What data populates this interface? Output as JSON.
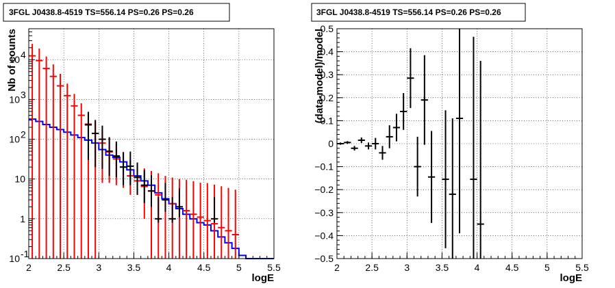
{
  "chart_data": [
    {
      "type": "scatter",
      "title": "3FGL J0438.8-4519 TS=556.14 PS=0.26 PS=0.26",
      "xlabel": "logE",
      "ylabel": "Nb of counts",
      "xlim": [
        2,
        5.5
      ],
      "ylim": [
        0.1,
        60000
      ],
      "log_y": true,
      "grid": true,
      "x_ticks": [
        "2",
        "2.5",
        "3",
        "3.5",
        "4",
        "4.5",
        "5",
        "5.5"
      ],
      "y_ticks": [
        {
          "value": 0.1,
          "base": "10",
          "exp": "-1"
        },
        {
          "value": 1,
          "base": "1",
          "exp": ""
        },
        {
          "value": 10,
          "base": "10",
          "exp": ""
        },
        {
          "value": 100,
          "base": "10",
          "exp": "2"
        },
        {
          "value": 1000,
          "base": "10",
          "exp": "3"
        },
        {
          "value": 10000,
          "base": "10",
          "exp": "4"
        }
      ],
      "series": [
        {
          "role": "model_histogram",
          "color": "#0000ff",
          "edges": [
            2.0,
            2.1,
            2.2,
            2.3,
            2.4,
            2.5,
            2.6,
            2.7,
            2.8,
            2.9,
            3.0,
            3.1,
            3.2,
            3.3,
            3.4,
            3.5,
            3.6,
            3.7,
            3.8,
            3.9,
            4.0,
            4.1,
            4.2,
            4.3,
            4.4,
            4.5,
            4.6,
            4.7,
            4.8,
            4.9,
            5.0,
            5.1,
            5.2,
            5.3,
            5.4,
            5.5
          ],
          "values": [
            320,
            280,
            235,
            200,
            175,
            150,
            128,
            110,
            95,
            80,
            55,
            40,
            35,
            27,
            17,
            12,
            9,
            7,
            4.5,
            3.2,
            2.4,
            1.8,
            1.3,
            1.0,
            0.8,
            0.7,
            0.5,
            0.35,
            0.25,
            0.18,
            0.12,
            0.1,
            0.1,
            0.1,
            0.1
          ]
        },
        {
          "role": "red_points",
          "color": "#ff0000",
          "x": [
            2.05,
            2.15,
            2.25,
            2.35,
            2.45,
            2.55,
            2.65,
            2.75,
            2.85,
            2.95,
            3.05,
            3.15,
            3.25,
            3.35,
            3.45,
            3.55,
            3.65,
            3.75,
            3.85,
            3.95,
            4.05,
            4.15,
            4.25,
            4.35,
            4.45,
            4.55,
            4.65,
            4.75,
            4.85,
            4.95
          ],
          "y": [
            12500,
            9500,
            6000,
            3800,
            2200,
            1250,
            690,
            400,
            240,
            140,
            80,
            48,
            32,
            20,
            12,
            9,
            6.5,
            5,
            4,
            3,
            2.4,
            2,
            1.6,
            1.3,
            1.1,
            0.9,
            0.75,
            0.6,
            0.5,
            0.4
          ],
          "yerr_low": [
            12500,
            9500,
            6000,
            3800,
            2200,
            1250,
            690,
            400,
            240,
            140,
            72,
            40,
            25,
            14,
            8,
            5,
            5.5,
            4.9,
            3.9,
            2.9,
            2.3,
            1.9,
            1.5,
            1.2,
            1.0,
            0.8,
            0.65,
            0.5,
            0.4,
            0.3
          ],
          "yerr_high": [
            12500,
            9500,
            6000,
            3800,
            2200,
            1250,
            690,
            400,
            240,
            140,
            90,
            58,
            42,
            28,
            18,
            16,
            12,
            11,
            10,
            9,
            8.5,
            8,
            8,
            7.5,
            7,
            7,
            6.5,
            6,
            5.5,
            5
          ]
        },
        {
          "role": "black_points",
          "color": "#000000",
          "x": [
            2.85,
            2.95,
            3.05,
            3.15,
            3.25,
            3.35,
            3.45,
            3.55,
            3.65,
            3.75,
            3.85,
            3.95,
            4.05,
            4.15,
            4.65
          ],
          "y": [
            230,
            140,
            100,
            50,
            38,
            20,
            21,
            11,
            7,
            5,
            1,
            3,
            1,
            2,
            1
          ],
          "yerr_low": [
            200,
            120,
            82,
            38,
            27,
            13,
            14,
            7,
            4.5,
            3,
            0.2,
            1.5,
            0.2,
            0.9,
            0.2
          ],
          "yerr_high": [
            260,
            165,
            120,
            63,
            50,
            27,
            28,
            15,
            10,
            7.5,
            2.5,
            5,
            2.5,
            3.8,
            2.5
          ]
        }
      ]
    },
    {
      "type": "scatter",
      "title": "3FGL J0438.8-4519 TS=556.14 PS=0.26 PS=0.26",
      "xlabel": "logE",
      "ylabel": "(data-model)/model",
      "xlim": [
        2,
        5.5
      ],
      "ylim": [
        -0.5,
        0.5
      ],
      "grid": true,
      "x_ticks": [
        "2",
        "2.5",
        "3",
        "3.5",
        "4",
        "4.5",
        "5",
        "5.5"
      ],
      "y_ticks": [
        "−0.5",
        "−0.4",
        "−0.3",
        "−0.2",
        "−0.1",
        "0",
        "0.1",
        "0.2",
        "0.3",
        "0.4",
        "0.5"
      ],
      "series": [
        {
          "role": "residuals",
          "color": "#000000",
          "x": [
            2.05,
            2.15,
            2.25,
            2.35,
            2.45,
            2.55,
            2.65,
            2.75,
            2.85,
            2.95,
            3.05,
            3.15,
            3.25,
            3.35,
            3.55,
            3.65,
            3.75,
            3.95,
            4.05
          ],
          "y": [
            0.0,
            0.005,
            -0.02,
            0.015,
            -0.01,
            0.0,
            -0.04,
            0.03,
            0.07,
            0.14,
            0.285,
            -0.1,
            0.19,
            -0.145,
            -0.155,
            -0.22,
            0.11,
            -0.155,
            -0.35
          ],
          "err": [
            0.005,
            0.006,
            0.01,
            0.012,
            0.015,
            0.025,
            0.03,
            0.05,
            0.06,
            0.08,
            0.13,
            0.13,
            0.195,
            0.2,
            0.3,
            0.33,
            0.5,
            0.62,
            0.71
          ],
          "half_width": [
            0.05,
            0.05,
            0.05,
            0.05,
            0.05,
            0.05,
            0.05,
            0.05,
            0.05,
            0.05,
            0.05,
            0.05,
            0.05,
            0.05,
            0.05,
            0.05,
            0.05,
            0.05,
            0.05
          ]
        }
      ]
    }
  ]
}
